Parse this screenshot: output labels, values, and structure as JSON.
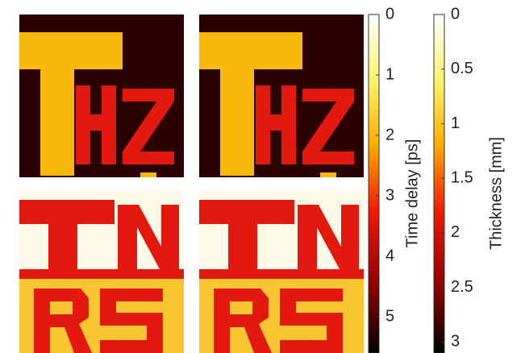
{
  "chart_data": [
    {
      "type": "colorbar",
      "label": "Time delay [ps]",
      "ylim": [
        0,
        5.6
      ],
      "yticks": [
        0,
        1,
        2,
        3,
        4,
        5
      ]
    },
    {
      "type": "colorbar",
      "label": "Thickness [mm]",
      "ylim": [
        0,
        3.1
      ],
      "yticks": [
        0,
        0.5,
        1,
        1.5,
        2,
        2.5,
        3
      ]
    }
  ]
}
